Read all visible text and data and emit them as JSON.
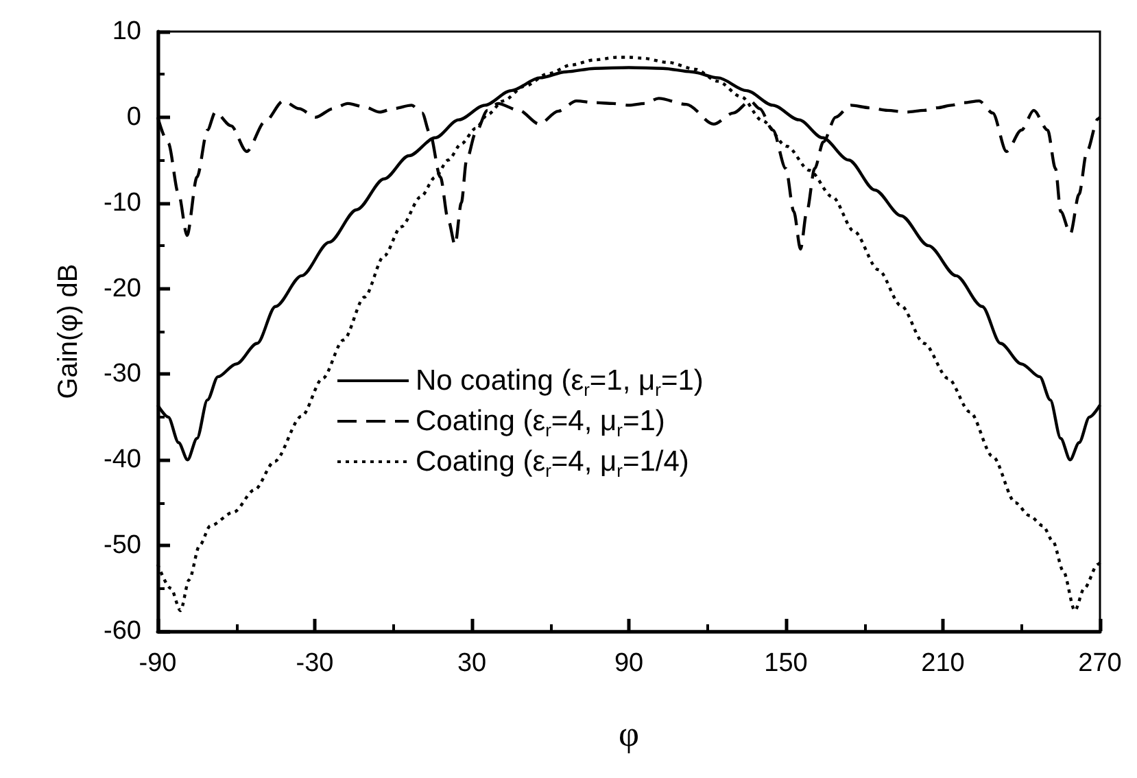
{
  "chart_data": {
    "type": "line",
    "xlabel": "φ",
    "ylabel": "Gain(φ) dB",
    "xlim": [
      -90,
      270
    ],
    "ylim": [
      -60,
      10
    ],
    "xticks": [
      -90,
      {
        "value": -60,
        "label": null
      },
      -30,
      {
        "value": 0,
        "label": null
      },
      30,
      {
        "value": 60,
        "label": null
      },
      90,
      {
        "value": 120,
        "label": null
      },
      150,
      {
        "value": 180,
        "label": null
      },
      210,
      {
        "value": 240,
        "label": null
      },
      270
    ],
    "yticks": [
      -60,
      {
        "value": -55,
        "label": null
      },
      -50,
      {
        "value": -45,
        "label": null
      },
      -40,
      {
        "value": -35,
        "label": null
      },
      -30,
      {
        "value": -25,
        "label": null
      },
      -20,
      {
        "value": -15,
        "label": null
      },
      -10,
      {
        "value": -5,
        "label": null
      },
      0,
      {
        "value": 5,
        "label": null
      },
      10
    ],
    "grid": false,
    "legend": "bottom",
    "marker": "none",
    "series": [
      {
        "name": "No coating (ε$_{r}$=1, μ$_{r}$=1)",
        "color": "#000000",
        "line_style": "solid",
        "x": [
          -90,
          -86,
          -82,
          -78.6,
          -75,
          -71,
          -67,
          -60,
          -52,
          -45,
          -35,
          -24.5,
          -14,
          -3.5,
          6,
          16,
          25,
          35,
          45,
          56,
          66,
          77,
          90,
          103,
          114,
          124,
          135,
          145,
          155,
          164,
          174,
          184,
          194,
          204.5,
          215,
          225,
          232,
          240,
          247,
          251,
          255,
          258.6,
          262,
          266,
          270
        ],
        "values": [
          -33.6,
          -35,
          -38,
          -40,
          -37.5,
          -33,
          -30.3,
          -28.8,
          -26.4,
          -22.1,
          -18.5,
          -14.6,
          -10.8,
          -7.2,
          -4.5,
          -2.4,
          -0.3,
          1.4,
          3.1,
          4.6,
          5.3,
          5.7,
          5.8,
          5.7,
          5.3,
          4.6,
          3.1,
          1.4,
          -0.3,
          -2.4,
          -5,
          -8.5,
          -11.5,
          -15,
          -18.5,
          -22.1,
          -26.4,
          -28.8,
          -30.3,
          -33,
          -37.5,
          -40,
          -38,
          -35,
          -33.6
        ]
      },
      {
        "name": "Coating (ε$_{r}$=4, μ$_{r}$=1)",
        "color": "#000000",
        "line_style": "dashed",
        "x": [
          -90,
          -86,
          -82,
          -78.8,
          -75,
          -71,
          -68,
          -62,
          -56,
          -49,
          -42,
          -36,
          -29.7,
          -23,
          -17.4,
          -11,
          -5.2,
          0,
          7,
          11,
          14,
          18,
          21,
          23.6,
          26,
          28,
          31.5,
          36,
          40,
          48,
          55.8,
          63,
          70,
          77,
          84,
          90,
          96,
          101.4,
          112,
          122.4,
          130,
          136.4,
          140,
          145,
          150,
          153,
          155.6,
          158,
          161,
          164.3,
          169,
          174.8,
          182,
          188.8,
          196,
          202.8,
          208,
          213.3,
          218,
          223.8,
          229,
          234.3,
          240,
          244.7,
          250,
          253,
          255,
          258.7,
          262,
          265,
          269.2,
          270
        ],
        "values": [
          0,
          -3,
          -9,
          -13.8,
          -7,
          -1.5,
          0.6,
          -1,
          -4,
          -0.5,
          1.9,
          1,
          0,
          1,
          1.6,
          1.2,
          0.6,
          1,
          1.4,
          0.5,
          -1.9,
          -7,
          -12,
          -14.9,
          -10,
          -5,
          -1.8,
          0.8,
          1.6,
          0.8,
          -0.8,
          0.7,
          1.9,
          1.7,
          1.6,
          1.4,
          1.6,
          2.2,
          1.5,
          -0.8,
          0.5,
          1.9,
          1,
          -1.5,
          -6,
          -11,
          -15.4,
          -11,
          -6,
          -2.9,
          0,
          1.4,
          1.1,
          0.8,
          0.6,
          0.8,
          1.1,
          1.4,
          1.7,
          1.9,
          0.5,
          -4,
          -1.5,
          0.8,
          -1.5,
          -6,
          -11,
          -13.6,
          -9,
          -4,
          -0.2,
          0
        ]
      },
      {
        "name": "Coating (ε$_{r}$=4, μ$_{r}$=1/4)",
        "color": "#000000",
        "line_style": "dotted",
        "x": [
          -90,
          -85,
          -81.3,
          -78,
          -74,
          -69.9,
          -61,
          -53,
          -45.4,
          -35,
          -27,
          -19,
          -11,
          -3.5,
          3,
          10.5,
          16,
          21,
          26,
          31.5,
          36,
          42,
          50,
          59.4,
          68,
          76.9,
          85.7,
          90,
          95,
          105,
          115.4,
          124,
          132.9,
          141,
          150.4,
          159,
          167.8,
          176,
          185.3,
          194,
          202.8,
          212,
          220.3,
          229,
          237.7,
          243,
          248.2,
          252,
          256,
          260.4,
          264,
          269.2,
          270
        ],
        "values": [
          -52.2,
          -55,
          -57.6,
          -54,
          -50,
          -47.7,
          -46.1,
          -43.5,
          -40.2,
          -34.9,
          -30.5,
          -26,
          -21,
          -16.2,
          -12.8,
          -9.3,
          -7,
          -5,
          -3.1,
          -1.3,
          0.3,
          1.9,
          3.6,
          5.1,
          6.1,
          6.7,
          7,
          7,
          6.9,
          6.4,
          5.6,
          4.2,
          2.4,
          -0.4,
          -3.4,
          -6.2,
          -9.3,
          -13.3,
          -17.8,
          -22,
          -26.4,
          -30.5,
          -34.4,
          -39.6,
          -45,
          -46.5,
          -47.7,
          -49.5,
          -53,
          -57.6,
          -55,
          -52.2,
          -52
        ]
      }
    ]
  }
}
